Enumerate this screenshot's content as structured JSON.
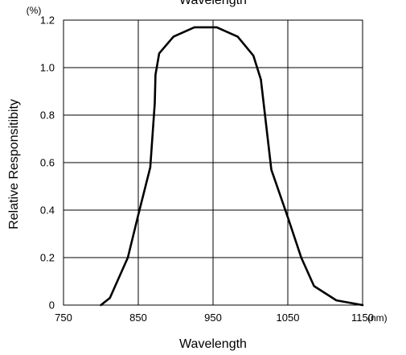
{
  "chart_data": {
    "type": "line",
    "title": "Wavelength",
    "xlabel": "Wavelength",
    "ylabel": "Relative Responsitibity",
    "x_unit": "(nm)",
    "y_unit": "(%)",
    "xlim": [
      750,
      1150
    ],
    "ylim": [
      0,
      1.2
    ],
    "x_ticks": [
      750,
      850,
      950,
      1050,
      1150
    ],
    "y_ticks": [
      0,
      0.2,
      0.4,
      0.6,
      0.8,
      1.0,
      1.2
    ],
    "x_tick_labels": [
      "750",
      "850",
      "950",
      "1050",
      "1150"
    ],
    "y_tick_labels": [
      "0",
      "0.2",
      "0.4",
      "0.6",
      "0.8",
      "1.0",
      "1.2"
    ],
    "grid": true,
    "series": [
      {
        "color": "#000000",
        "x": [
          800,
          812,
          836,
          850,
          866,
          872,
          873,
          878,
          897,
          925,
          955,
          983,
          1004,
          1014,
          1028,
          1050,
          1068,
          1085,
          1115,
          1150
        ],
        "y": [
          0.0,
          0.03,
          0.2,
          0.38,
          0.58,
          0.85,
          0.97,
          1.06,
          1.13,
          1.17,
          1.17,
          1.13,
          1.05,
          0.95,
          0.57,
          0.37,
          0.2,
          0.08,
          0.02,
          0.0
        ]
      }
    ]
  }
}
